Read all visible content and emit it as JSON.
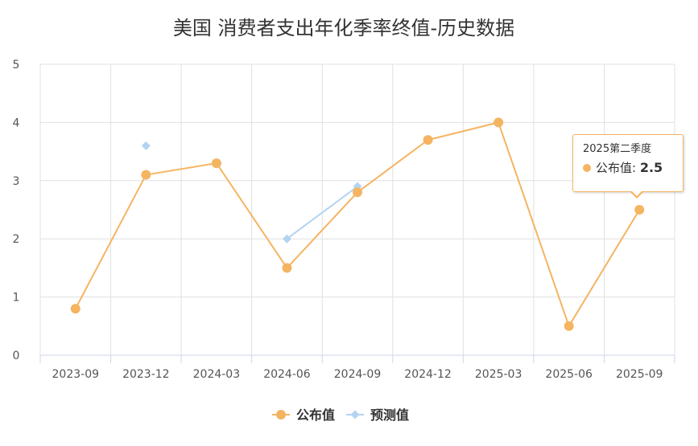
{
  "chart_data": {
    "type": "line",
    "title": "美国 消费者支出年化季率终值-历史数据",
    "categories": [
      "2023-09",
      "2023-12",
      "2024-03",
      "2024-06",
      "2024-09",
      "2024-12",
      "2025-03",
      "2025-06",
      "2025-09"
    ],
    "y_ticks": [
      "0",
      "1",
      "2",
      "3",
      "4",
      "5"
    ],
    "ylim": [
      0,
      5
    ],
    "grid": true,
    "legend_position": "bottom",
    "series": [
      {
        "name": "公布值",
        "values": [
          0.8,
          3.1,
          3.3,
          1.5,
          2.8,
          3.7,
          4.0,
          0.5,
          2.5
        ],
        "color": "#f5b461",
        "marker": "circle"
      },
      {
        "name": "预测值",
        "values": [
          null,
          3.6,
          null,
          2.0,
          2.9,
          null,
          null,
          null,
          null
        ],
        "color": "#b3d4f0",
        "marker": "diamond"
      }
    ]
  },
  "tooltip": {
    "header": "2025第二季度",
    "series_name": "公布值",
    "separator": ": ",
    "value": "2.5"
  }
}
